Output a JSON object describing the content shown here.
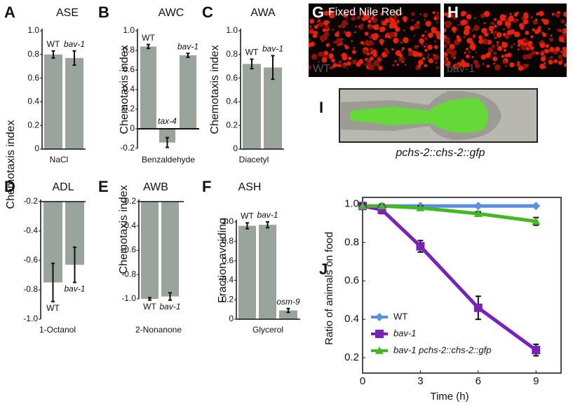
{
  "chart_data": [
    {
      "type": "bar",
      "panel": "A",
      "title": "ASE",
      "xlabel": "NaCl",
      "ylabel": "Chemotaxis index",
      "color": "#9aa39c",
      "categories": [
        "WT",
        "bav-1"
      ],
      "values": [
        0.8,
        0.77
      ],
      "errors": [
        0.03,
        0.06
      ],
      "ylim": [
        0,
        1
      ],
      "yticks": [
        0,
        0.2,
        0.4,
        0.6,
        0.8,
        {
          "value": 1,
          "label": "1.0"
        }
      ]
    },
    {
      "type": "bar",
      "panel": "B",
      "title": "AWC",
      "xlabel": "Benzaldehyde",
      "ylabel": "Chemotaxis index",
      "color": "#9aa39c",
      "categories": [
        "WT",
        "tax-4",
        "bav-1"
      ],
      "values": [
        0.84,
        -0.14,
        0.75
      ],
      "errors": [
        0.02,
        0.05,
        0.02
      ],
      "ylim": [
        -0.2,
        1
      ],
      "yticks": [
        -0.2,
        0,
        0.2,
        0.4,
        0.6,
        0.8,
        {
          "value": 1,
          "label": "1.0"
        }
      ]
    },
    {
      "type": "bar",
      "panel": "C",
      "title": "AWA",
      "xlabel": "Diacetyl",
      "ylabel": "Chemotaxis index",
      "color": "#9aa39c",
      "categories": [
        "WT",
        "bav-1"
      ],
      "values": [
        0.72,
        0.69
      ],
      "errors": [
        0.04,
        0.1
      ],
      "ylim": [
        0,
        1
      ],
      "yticks": [
        0,
        0.2,
        0.4,
        0.6,
        0.8,
        {
          "value": 1,
          "label": "1.0"
        }
      ]
    },
    {
      "type": "bar",
      "panel": "D",
      "title": "ADL",
      "xlabel": "1-Octanol",
      "color": "#9aa39c",
      "categories": [
        "WT",
        "bav-1"
      ],
      "values": [
        -0.75,
        -0.63
      ],
      "errors": [
        0.13,
        0.12
      ],
      "ylim": [
        -1,
        -0.2
      ],
      "yticks": [
        {
          "value": -1,
          "label": "-1.0"
        },
        -0.8,
        -0.6,
        -0.4,
        -0.2
      ]
    },
    {
      "type": "bar",
      "panel": "E",
      "title": "AWB",
      "xlabel": "2-Nonanone",
      "ylabel": "Chemotaxis index",
      "color": "#9aa39c",
      "categories": [
        "WT",
        "bav-1"
      ],
      "values": [
        -1,
        -0.98
      ],
      "errors": [
        0.01,
        0.03
      ],
      "ylim": [
        -1,
        -0.2
      ],
      "yticks": [
        {
          "value": -1,
          "label": "-1.0"
        },
        -0.8,
        -0.6,
        -0.4,
        -0.2
      ]
    },
    {
      "type": "bar",
      "panel": "F",
      "title": "ASH",
      "xlabel": "Glycerol",
      "ylabel": "Fraction avoiding",
      "color": "#9aa39c",
      "categories": [
        "WT",
        "bav-1",
        "osm-9"
      ],
      "values": [
        0.96,
        0.97,
        0.09
      ],
      "errors": [
        0.03,
        0.03,
        0.02
      ],
      "ylim": [
        0,
        1
      ],
      "yticks": [
        0,
        0.2,
        0.4,
        0.6,
        0.8,
        {
          "value": 1,
          "label": "1.0"
        }
      ]
    },
    {
      "type": "line",
      "panel": "J",
      "xlabel": "Time (h)",
      "ylabel": "Ratio of animals on food",
      "x": [
        0,
        1,
        3,
        6,
        9
      ],
      "xlim": [
        0,
        10.3
      ],
      "xticks": [
        0,
        3,
        6,
        9
      ],
      "ylim": [
        0.12,
        1.02
      ],
      "yticks": [
        0.2,
        0.4,
        0.6,
        0.8,
        {
          "value": 1,
          "label": "1.0"
        }
      ],
      "legend": "lower left",
      "series": [
        {
          "name": "WT",
          "color": "#5b8fe6",
          "marker": "diamond",
          "values": [
            0.99,
            0.99,
            0.99,
            0.99,
            0.99
          ]
        },
        {
          "name": "bav-1",
          "color": "#7a22b8",
          "marker": "square",
          "values": [
            0.99,
            0.97,
            0.78,
            0.46,
            0.24
          ],
          "errors": [
            0.01,
            0.02,
            0.03,
            0.06,
            0.03
          ]
        },
        {
          "name": "bav-1 pchs-2::chs-2::gfp",
          "color": "#44b824",
          "marker": "triangle",
          "values": [
            0.99,
            0.99,
            0.98,
            0.95,
            0.91
          ],
          "errors": [
            0.01,
            0.01,
            0.01,
            0.01,
            0.02
          ]
        }
      ]
    }
  ],
  "images": [
    {
      "panel": "G",
      "label": "Fixed Nile Red",
      "sublabel": "WT"
    },
    {
      "panel": "H",
      "sublabel": "bav-1"
    },
    {
      "panel": "I",
      "caption": "pchs-2::chs-2::gfp"
    }
  ]
}
